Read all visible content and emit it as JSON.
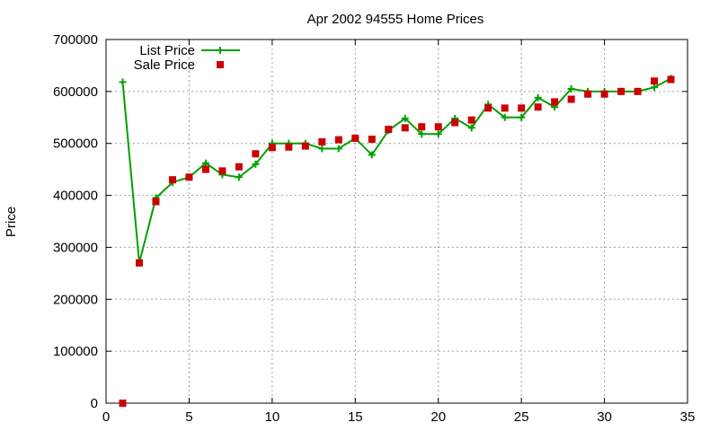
{
  "chart_data": {
    "type": "line",
    "title": "Apr 2002 94555 Home Prices",
    "xlabel": "",
    "ylabel": "Price",
    "xlim": [
      0,
      35
    ],
    "ylim": [
      0,
      700000
    ],
    "xticks": [
      0,
      5,
      10,
      15,
      20,
      25,
      30,
      35
    ],
    "yticks": [
      0,
      100000,
      200000,
      300000,
      400000,
      500000,
      600000,
      700000
    ],
    "xtick_labels": [
      "0",
      "5",
      "10",
      "15",
      "20",
      "25",
      "30",
      "35"
    ],
    "ytick_labels": [
      "0",
      "100000",
      "200000",
      "300000",
      "400000",
      "500000",
      "600000",
      "700000"
    ],
    "grid": true,
    "legend_position": "top-left",
    "series": [
      {
        "name": "List Price",
        "style": "linespoints",
        "marker": "plus",
        "color": "#00a000",
        "x": [
          1,
          2,
          3,
          4,
          5,
          6,
          7,
          8,
          9,
          10,
          11,
          12,
          13,
          14,
          15,
          16,
          17,
          18,
          19,
          20,
          21,
          22,
          23,
          24,
          25,
          26,
          27,
          28,
          29,
          30,
          31,
          32,
          33,
          34
        ],
        "values": [
          618000,
          270000,
          395000,
          425000,
          435000,
          462000,
          440000,
          435000,
          460000,
          500000,
          500000,
          500000,
          490000,
          490000,
          510000,
          478000,
          525000,
          548000,
          518000,
          518000,
          548000,
          530000,
          575000,
          550000,
          550000,
          588000,
          570000,
          605000,
          600000,
          600000,
          600000,
          600000,
          608000,
          625000
        ]
      },
      {
        "name": "Sale Price",
        "style": "points",
        "marker": "square",
        "color": "#cc0000",
        "x": [
          1,
          2,
          3,
          4,
          5,
          6,
          7,
          8,
          9,
          10,
          11,
          12,
          13,
          14,
          15,
          16,
          17,
          18,
          19,
          20,
          21,
          22,
          23,
          24,
          25,
          26,
          27,
          28,
          29,
          30,
          31,
          32,
          33,
          34
        ],
        "values": [
          0,
          270000,
          388000,
          430000,
          435000,
          450000,
          447000,
          455000,
          480000,
          492000,
          493000,
          495000,
          503000,
          507000,
          510000,
          508000,
          527000,
          530000,
          532000,
          532000,
          540000,
          545000,
          568000,
          568000,
          568000,
          570000,
          580000,
          585000,
          595000,
          595000,
          600000,
          600000,
          620000,
          623000
        ]
      }
    ]
  }
}
